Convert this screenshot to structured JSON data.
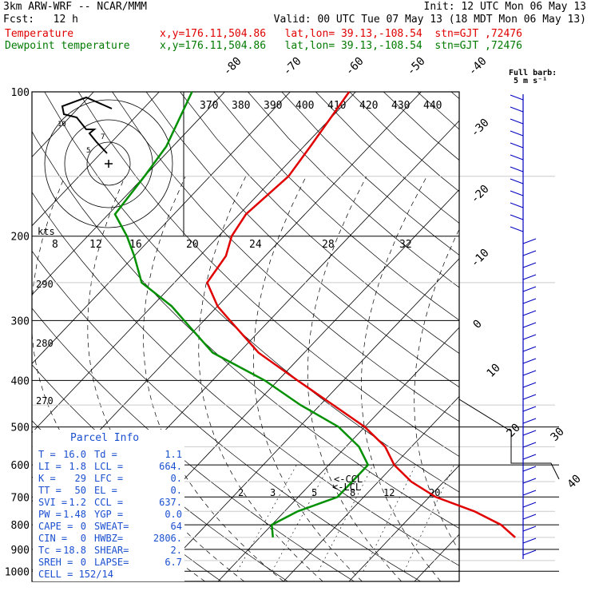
{
  "header": {
    "model": "3km ARW-WRF -- NCAR/MMM",
    "init": "Init: 12 UTC Mon 06 May 13",
    "fcst": "Fcst:   12 h",
    "valid": "Valid: 00 UTC Tue 07 May 13 (18 MDT Mon 06 May 13)",
    "temp_label": "Temperature",
    "temp_loc": "x,y=176.11,504.86   lat,lon= 39.13,-108.54  stn=GJT ,72476",
    "dew_label": "Dewpoint temperature",
    "dew_loc": "x,y=176.11,504.86   lat,lon= 39.13,-108.54  stn=GJT ,72476"
  },
  "colors": {
    "temperature": "#e00000",
    "dewpoint": "#009000",
    "barbs": "#0000c0"
  },
  "chart_data": {
    "type": "line",
    "subtype": "skew-T log-P sounding",
    "y_scale": "log pressure",
    "ylabel_units": "hPa",
    "pressure_levels": [
      100,
      200,
      300,
      400,
      500,
      600,
      700,
      800,
      900,
      1000
    ],
    "isotherm_labels": [
      "-80",
      "-70",
      "-60",
      "-50",
      "-40",
      "-30",
      "-20",
      "-10",
      "0",
      "10",
      "20",
      "30",
      "40"
    ],
    "theta_labels": [
      "370",
      "380",
      "390",
      "400",
      "410",
      "420",
      "430",
      "440"
    ],
    "theta_bottom_labels": [
      "290",
      "280",
      "270"
    ],
    "mixing_ratio_labels": [
      "2",
      "3",
      "5",
      "8",
      "12",
      "20"
    ],
    "series": [
      {
        "name": "Temperature",
        "p": [
          100,
          130,
          150,
          180,
          200,
          220,
          250,
          280,
          300,
          350,
          400,
          450,
          500,
          550,
          600,
          650,
          700,
          750,
          800,
          850
        ],
        "t": [
          -61,
          -59,
          -58,
          -59,
          -58,
          -56,
          -55,
          -50,
          -46,
          -37,
          -27,
          -18,
          -10,
          -4,
          0,
          5,
          11,
          19,
          25,
          29
        ]
      },
      {
        "name": "Dewpoint temperature",
        "p": [
          100,
          130,
          150,
          180,
          200,
          220,
          250,
          280,
          300,
          350,
          400,
          450,
          500,
          550,
          600,
          650,
          700,
          750,
          800,
          850
        ],
        "t": [
          -85,
          -81,
          -80,
          -79,
          -74,
          -70,
          -65,
          -57,
          -53,
          -44,
          -32,
          -23,
          -14,
          -8,
          -4,
          -4,
          -4,
          -8,
          -10,
          -8
        ]
      }
    ],
    "parcel_markers": [
      "<-CCL",
      "<-LCL"
    ],
    "hodograph": {
      "units_label": "kts",
      "ring_labels": [
        "8",
        "12",
        "16",
        "20",
        "24",
        "28",
        "32"
      ],
      "path_labels": [
        "10",
        "7",
        "5"
      ]
    },
    "wind_barb_legend": "Full barb:\n5 m s⁻¹",
    "parcel_info": {
      "title": "Parcel Info",
      "rows": [
        [
          "T  =",
          "16.0",
          "Td =",
          "1.1"
        ],
        [
          "LI =",
          "1.8",
          "LCL =",
          "664."
        ],
        [
          "K  =",
          "29",
          "LFC =",
          "0."
        ],
        [
          "TT =",
          "50",
          "EL  =",
          "0."
        ],
        [
          "SVI =",
          "1.2",
          "CCL =",
          "637."
        ],
        [
          "PW =",
          "1.48",
          "YGP =",
          "0.0"
        ],
        [
          "CAPE =",
          "0",
          "SWEAT=",
          "64"
        ],
        [
          "CIN =",
          "0",
          "HWBZ=",
          "2806."
        ],
        [
          "Tc =",
          "18.8",
          "SHEAR=",
          "2."
        ],
        [
          "SREH =",
          "0",
          "LAPSE=",
          "6.7"
        ]
      ],
      "cell": "CELL = 152/14"
    }
  }
}
